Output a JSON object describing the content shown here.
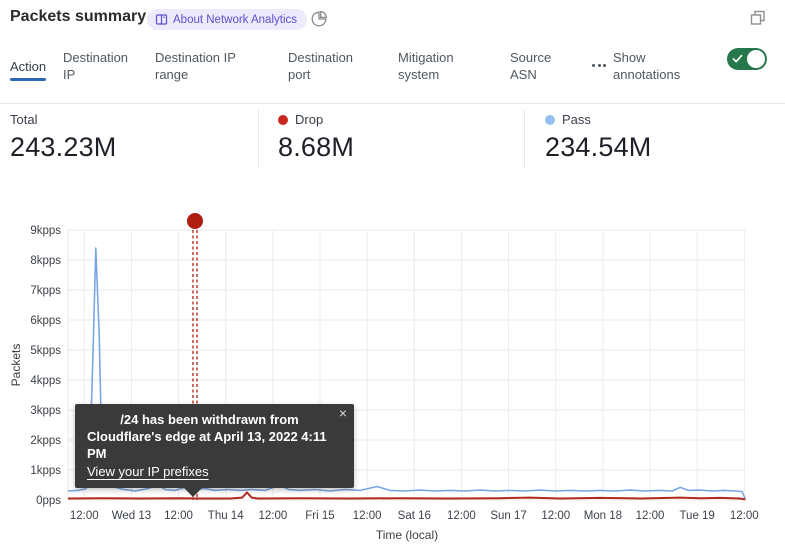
{
  "header": {
    "title": "Packets summary",
    "about_badge": "About Network Analytics"
  },
  "icons": {
    "badge_book": "book-icon",
    "time_period": "pie-chart-icon",
    "window": "overlap-squares-icon",
    "more": "ellipsis-icon",
    "toggle_check": "check-icon",
    "close_glyph": "×"
  },
  "tabs": {
    "items": [
      {
        "label": "Action",
        "selected": true
      },
      {
        "label": "Destination IP",
        "selected": false
      },
      {
        "label": "Destination IP range",
        "selected": false
      },
      {
        "label": "Destination port",
        "selected": false
      },
      {
        "label": "Mitigation system",
        "selected": false
      },
      {
        "label": "Source ASN",
        "selected": false
      }
    ],
    "show_annotations": {
      "label": "Show annotations",
      "enabled": true
    }
  },
  "stats": {
    "total": {
      "label": "Total",
      "value": "243.23M"
    },
    "drop": {
      "label": "Drop",
      "value": "8.68M",
      "color": "#c9271c"
    },
    "pass": {
      "label": "Pass",
      "value": "234.54M",
      "color": "#95bff2"
    }
  },
  "tooltip": {
    "message_line1": "/24 has been withdrawn from",
    "message_line2": "Cloudflare's edge at April 13, 2022 4:11 PM",
    "link": "View your IP prefixes"
  },
  "chart_data": {
    "type": "line",
    "title": "Packets summary",
    "xlabel": "Time (local)",
    "ylabel": "Packets",
    "ylim": [
      0,
      9
    ],
    "y_unit": "kpps",
    "grid": true,
    "y_ticks": [
      "0pps",
      "1kpps",
      "2kpps",
      "3kpps",
      "4kpps",
      "5kpps",
      "6kpps",
      "7kpps",
      "8kpps",
      "9kpps"
    ],
    "x_ticks": [
      "12:00",
      "Wed 13",
      "12:00",
      "Thu 14",
      "12:00",
      "Fri 15",
      "12:00",
      "Sat 16",
      "12:00",
      "Sun 17",
      "12:00",
      "Mon 18",
      "12:00",
      "Tue 19",
      "12:00"
    ],
    "series": [
      {
        "name": "Pass",
        "color": "#7aa6e4",
        "width": 1.6,
        "points": [
          [
            0.0,
            0.3
          ],
          [
            0.015,
            0.32
          ],
          [
            0.027,
            0.38
          ],
          [
            0.032,
            1.2
          ],
          [
            0.037,
            5.0
          ],
          [
            0.041,
            8.4
          ],
          [
            0.046,
            5.5
          ],
          [
            0.05,
            1.5
          ],
          [
            0.056,
            0.7
          ],
          [
            0.065,
            0.45
          ],
          [
            0.08,
            0.36
          ],
          [
            0.099,
            0.3
          ],
          [
            0.118,
            0.38
          ],
          [
            0.133,
            0.5
          ],
          [
            0.143,
            0.35
          ],
          [
            0.158,
            0.32
          ],
          [
            0.173,
            0.42
          ],
          [
            0.187,
            0.36
          ],
          [
            0.202,
            0.38
          ],
          [
            0.217,
            0.32
          ],
          [
            0.236,
            0.35
          ],
          [
            0.254,
            0.32
          ],
          [
            0.271,
            0.35
          ],
          [
            0.291,
            0.32
          ],
          [
            0.313,
            0.5
          ],
          [
            0.325,
            0.35
          ],
          [
            0.342,
            0.32
          ],
          [
            0.364,
            0.35
          ],
          [
            0.386,
            0.3
          ],
          [
            0.409,
            0.35
          ],
          [
            0.431,
            0.32
          ],
          [
            0.456,
            0.45
          ],
          [
            0.475,
            0.32
          ],
          [
            0.497,
            0.3
          ],
          [
            0.519,
            0.33
          ],
          [
            0.541,
            0.3
          ],
          [
            0.563,
            0.32
          ],
          [
            0.586,
            0.3
          ],
          [
            0.608,
            0.33
          ],
          [
            0.63,
            0.3
          ],
          [
            0.652,
            0.32
          ],
          [
            0.674,
            0.3
          ],
          [
            0.696,
            0.33
          ],
          [
            0.718,
            0.3
          ],
          [
            0.74,
            0.32
          ],
          [
            0.763,
            0.3
          ],
          [
            0.785,
            0.32
          ],
          [
            0.807,
            0.3
          ],
          [
            0.829,
            0.33
          ],
          [
            0.851,
            0.3
          ],
          [
            0.873,
            0.32
          ],
          [
            0.891,
            0.3
          ],
          [
            0.903,
            0.42
          ],
          [
            0.915,
            0.32
          ],
          [
            0.932,
            0.33
          ],
          [
            0.95,
            0.3
          ],
          [
            0.968,
            0.32
          ],
          [
            0.985,
            0.3
          ],
          [
            0.994,
            0.28
          ],
          [
            0.999,
            0.05
          ]
        ]
      },
      {
        "name": "Drop",
        "color": "#b02a1e",
        "width": 2,
        "points": [
          [
            0.0,
            0.05
          ],
          [
            0.047,
            0.06
          ],
          [
            0.106,
            0.05
          ],
          [
            0.165,
            0.06
          ],
          [
            0.195,
            0.05
          ],
          [
            0.239,
            0.05
          ],
          [
            0.257,
            0.08
          ],
          [
            0.264,
            0.25
          ],
          [
            0.271,
            0.08
          ],
          [
            0.28,
            0.05
          ],
          [
            0.342,
            0.06
          ],
          [
            0.416,
            0.05
          ],
          [
            0.49,
            0.06
          ],
          [
            0.563,
            0.05
          ],
          [
            0.637,
            0.06
          ],
          [
            0.681,
            0.08
          ],
          [
            0.726,
            0.05
          ],
          [
            0.785,
            0.07
          ],
          [
            0.844,
            0.05
          ],
          [
            0.903,
            0.08
          ],
          [
            0.932,
            0.06
          ],
          [
            0.962,
            0.07
          ],
          [
            0.991,
            0.05
          ],
          [
            0.999,
            0.02
          ]
        ]
      }
    ],
    "annotation": {
      "x_frac": 0.1873,
      "color": "#ad1d10"
    }
  }
}
